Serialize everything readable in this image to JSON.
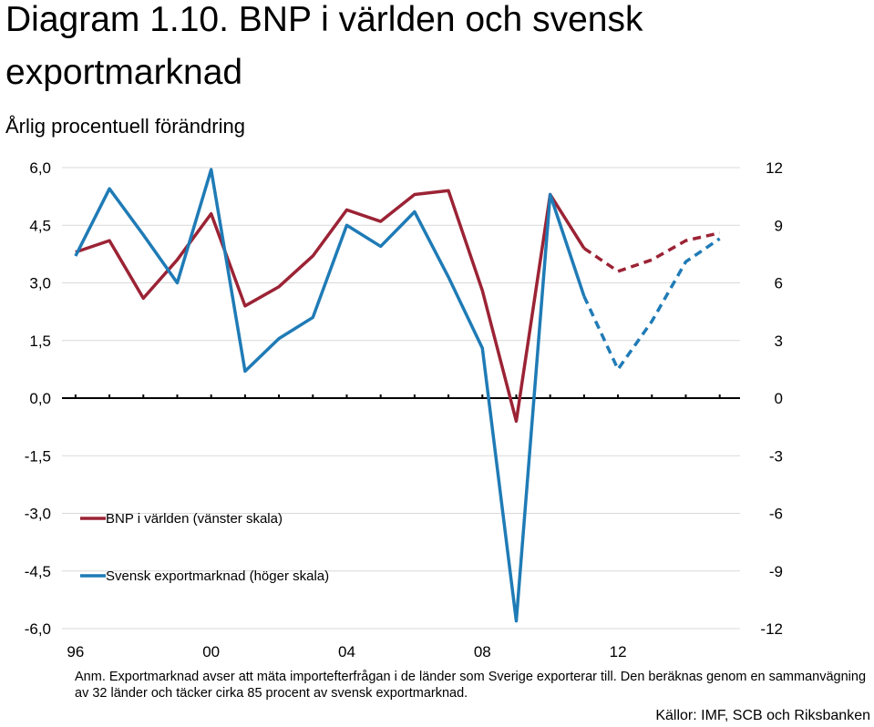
{
  "title_line1": "Diagram 1.10. BNP i världen och svensk",
  "title_line2": "exportmarknad",
  "subtitle": "Årlig procentuell förändring",
  "note": "Anm. Exportmarknad avser att mäta importefterfrågan i de länder som Sverige exporterar till. Den beräknas genom en sammanvägning av 32 länder och täcker cirka 85 procent av svensk exportmarknad.",
  "source": "Källor: IMF, SCB och Riksbanken",
  "colors": {
    "gdp": "#9B2335",
    "export": "#1F7BB6",
    "gridline": "#d9d9d9",
    "axis": "#000000"
  },
  "chart_data": {
    "type": "line",
    "title": "Diagram 1.10. BNP i världen och svensk exportmarknad",
    "subtitle": "Årlig procentuell förändring",
    "x_tick_labels": [
      "96",
      "00",
      "04",
      "08",
      "12"
    ],
    "x_tick_years": [
      1996,
      2000,
      2004,
      2008,
      2012
    ],
    "x": [
      1996,
      1997,
      1998,
      1999,
      2000,
      2001,
      2002,
      2003,
      2004,
      2005,
      2006,
      2007,
      2008,
      2009,
      2010,
      2011,
      2012,
      2013,
      2014,
      2015
    ],
    "xlim": [
      1995.6,
      2015.6
    ],
    "y_left": {
      "ylim": [
        -6.0,
        6.0
      ],
      "ticks": [
        6.0,
        4.5,
        3.0,
        1.5,
        0.0,
        -1.5,
        -3.0,
        -4.5,
        -6.0
      ],
      "tick_labels": [
        "6,0",
        "4,5",
        "3,0",
        "1,5",
        "0,0",
        "-1,5",
        "-3,0",
        "-4,5",
        "-6,0"
      ]
    },
    "y_right": {
      "ylim": [
        -12,
        12
      ],
      "ticks": [
        12,
        9,
        6,
        3,
        0,
        -3,
        -6,
        -9,
        -12
      ],
      "tick_labels": [
        "12",
        "9",
        "6",
        "3",
        "0",
        "-3",
        "-6",
        "-9",
        "-12"
      ]
    },
    "grid": true,
    "legend_position": "lower-left",
    "series": [
      {
        "name": "BNP i världen (vänster skala)",
        "axis": "left",
        "values": [
          3.8,
          4.1,
          2.6,
          3.6,
          4.8,
          2.4,
          2.9,
          3.7,
          4.9,
          4.6,
          5.3,
          5.4,
          2.8,
          -0.6,
          5.3,
          3.9,
          3.3,
          3.6,
          4.1,
          4.3
        ],
        "forecast_from": 2011
      },
      {
        "name": "Svensk exportmarknad (höger skala)",
        "axis": "right",
        "values": [
          7.4,
          10.9,
          8.5,
          6.0,
          11.9,
          1.4,
          3.1,
          4.2,
          9.0,
          7.9,
          9.7,
          6.3,
          2.6,
          -11.6,
          10.6,
          5.3,
          1.5,
          4.0,
          7.1,
          8.3
        ],
        "forecast_from": 2011
      }
    ]
  }
}
